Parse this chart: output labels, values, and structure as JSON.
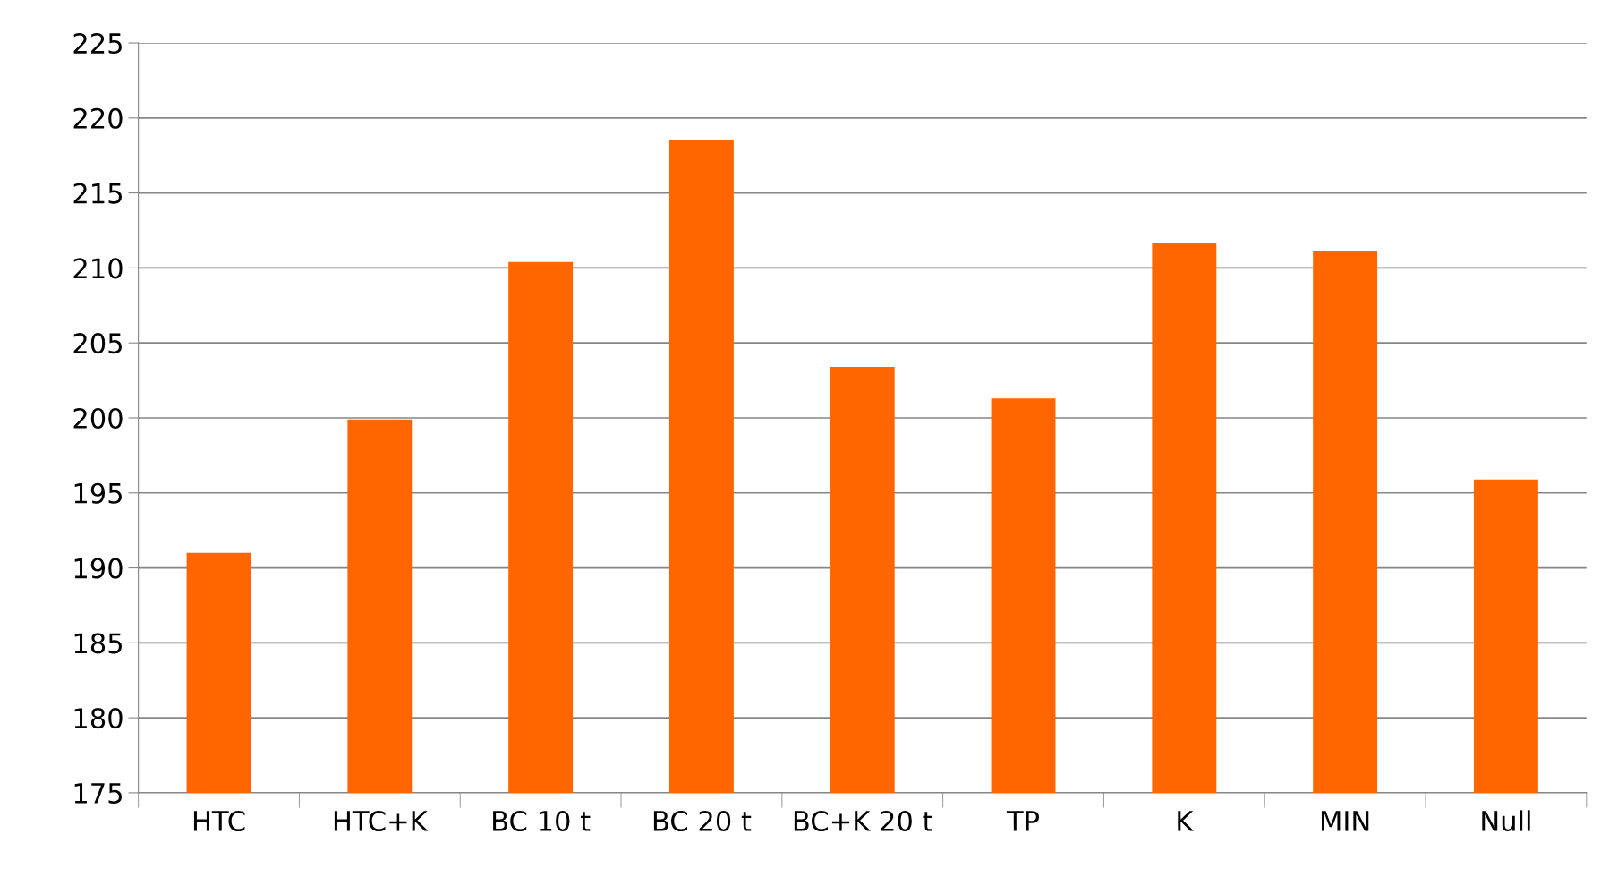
{
  "chart_data": {
    "type": "bar",
    "categories": [
      "HTC",
      "HTC+K",
      "BC 10 t",
      "BC 20 t",
      "BC+K 20 t",
      "TP",
      "K",
      "MIN",
      "Null"
    ],
    "values": [
      191.0,
      199.9,
      210.4,
      218.5,
      203.4,
      201.3,
      211.7,
      211.1,
      195.9
    ],
    "color": "#ff6600",
    "ylim": [
      175,
      225
    ],
    "yticks": [
      175,
      180,
      185,
      190,
      195,
      200,
      205,
      210,
      215,
      220,
      225
    ],
    "grid": "y",
    "legend": false
  }
}
